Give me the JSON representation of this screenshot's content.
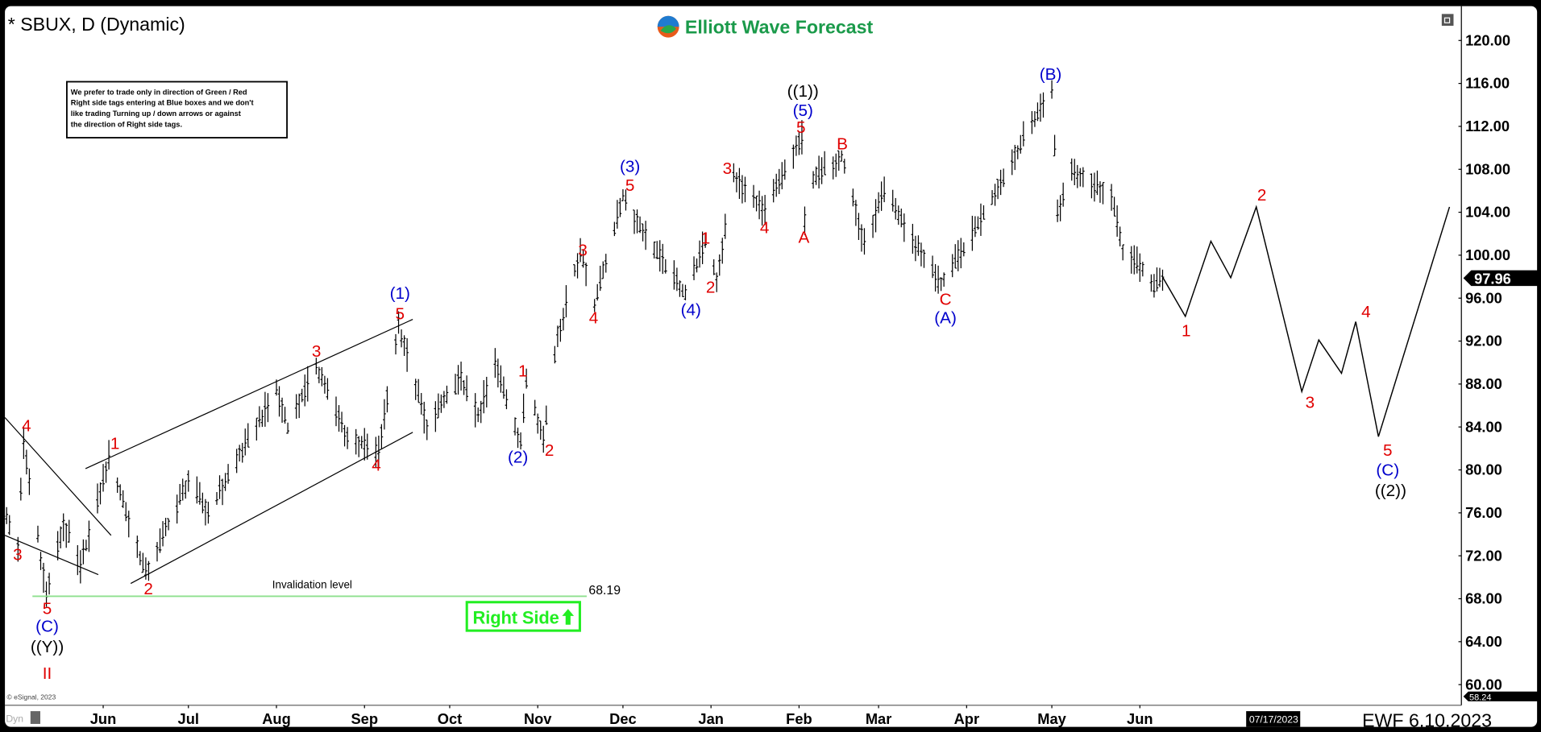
{
  "header": {
    "title": "* SBUX, D (Dynamic)",
    "logo_text": "Elliott Wave Forecast"
  },
  "info_box": {
    "lines": [
      "We prefer to trade only in direction of Green / Red",
      "Right side tags entering at Blue boxes and we don't",
      "like trading Turning up / down arrows or against",
      "the direction of Right side tags."
    ]
  },
  "colors": {
    "red_label": "#e00000",
    "blue_label": "#0000cc",
    "black_label": "#000000",
    "invalidation_line": "#8ee08e",
    "right_side_green": "#22ee22",
    "logo_green": "#1a9a4a",
    "bars": "#000000"
  },
  "chart_data": {
    "type": "ohlc",
    "symbol": "SBUX",
    "interval": "D",
    "ylim": [
      58,
      122
    ],
    "grid": false,
    "y_ticks": [
      "120.00",
      "116.00",
      "112.00",
      "108.00",
      "104.00",
      "100.00",
      "96.00",
      "92.00",
      "88.00",
      "84.00",
      "80.00",
      "76.00",
      "72.00",
      "68.00",
      "64.00",
      "60.00"
    ],
    "x_ticks": [
      "Jun",
      "Jul",
      "Aug",
      "Sep",
      "Oct",
      "Nov",
      "Dec",
      "Jan",
      "Feb",
      "Mar",
      "Apr",
      "May",
      "Jun"
    ],
    "last_price": "97.96",
    "axis_low_tag": "58.24",
    "cursor_date": "07/17/2023",
    "price_swings": [
      [
        "2022-04-27",
        76
      ],
      [
        "2022-05-02",
        73
      ],
      [
        "2022-05-04",
        82.6
      ],
      [
        "2022-05-12",
        68.4
      ],
      [
        "2022-05-18",
        75
      ],
      [
        "2022-05-24",
        71
      ],
      [
        "2022-06-03",
        81.2
      ],
      [
        "2022-06-16",
        70.2
      ],
      [
        "2022-07-01",
        79
      ],
      [
        "2022-07-08",
        76
      ],
      [
        "2022-08-01",
        87.5
      ],
      [
        "2022-08-05",
        84
      ],
      [
        "2022-08-15",
        89.7
      ],
      [
        "2022-08-26",
        83
      ],
      [
        "2022-09-06",
        81.7
      ],
      [
        "2022-09-13",
        93.6
      ],
      [
        "2022-09-23",
        84
      ],
      [
        "2022-10-05",
        88.5
      ],
      [
        "2022-10-11",
        85
      ],
      [
        "2022-10-17",
        90
      ],
      [
        "2022-10-26",
        82.6
      ],
      [
        "2022-10-28",
        88.5
      ],
      [
        "2022-11-03",
        83
      ],
      [
        "2022-11-08",
        92.6
      ],
      [
        "2022-11-16",
        100.5
      ],
      [
        "2022-11-21",
        95.4
      ],
      [
        "2022-12-01",
        105.5
      ],
      [
        "2022-12-09",
        101.8
      ],
      [
        "2022-12-23",
        96.3
      ],
      [
        "2022-12-30",
        101.3
      ],
      [
        "2023-01-03",
        97.7
      ],
      [
        "2023-01-09",
        107.3
      ],
      [
        "2023-01-20",
        104
      ],
      [
        "2023-02-02",
        111
      ],
      [
        "2023-02-03",
        103.2
      ],
      [
        "2023-02-06",
        107.3
      ],
      [
        "2023-02-16",
        109.3
      ],
      [
        "2023-02-24",
        100.9
      ],
      [
        "2023-03-03",
        105.9
      ],
      [
        "2023-03-23",
        97.2
      ],
      [
        "2023-04-03",
        102
      ],
      [
        "2023-05-01",
        115.7
      ],
      [
        "2023-05-03",
        104
      ],
      [
        "2023-05-08",
        108.2
      ],
      [
        "2023-05-22",
        105.5
      ],
      [
        "2023-05-26",
        100.4
      ],
      [
        "2023-06-01",
        99
      ],
      [
        "2023-06-06",
        97
      ],
      [
        "2023-06-09",
        97.96
      ]
    ],
    "projection": [
      [
        "2023-06-09",
        97.96
      ],
      [
        "2023-06-17",
        94.3
      ],
      [
        "2023-06-26",
        101.3
      ],
      [
        "2023-07-03",
        97.9
      ],
      [
        "2023-07-12",
        104.5
      ],
      [
        "2023-07-28",
        87.3
      ],
      [
        "2023-08-03",
        92.1
      ],
      [
        "2023-08-11",
        89
      ],
      [
        "2023-08-16",
        93.8
      ],
      [
        "2023-08-24",
        83.1
      ],
      [
        "2023-09-18",
        104.5
      ]
    ],
    "invalidation": {
      "label": "Invalidation level",
      "value": "68.19"
    },
    "right_side_tag": "Right Side",
    "wave_labels": [
      {
        "text": "4",
        "color": "red"
      },
      {
        "text": "3",
        "color": "red"
      },
      {
        "text": "5",
        "color": "red"
      },
      {
        "text": "(C)",
        "color": "blue"
      },
      {
        "text": "((Y))",
        "color": "black"
      },
      {
        "text": "II",
        "color": "red"
      },
      {
        "text": "1",
        "color": "red"
      },
      {
        "text": "2",
        "color": "red"
      },
      {
        "text": "3",
        "color": "red"
      },
      {
        "text": "4",
        "color": "red"
      },
      {
        "text": "5",
        "color": "red"
      },
      {
        "text": "(1)",
        "color": "blue"
      },
      {
        "text": "(2)",
        "color": "blue"
      },
      {
        "text": "1",
        "color": "red"
      },
      {
        "text": "2",
        "color": "red"
      },
      {
        "text": "3",
        "color": "red"
      },
      {
        "text": "4",
        "color": "red"
      },
      {
        "text": "5",
        "color": "red"
      },
      {
        "text": "(3)",
        "color": "blue"
      },
      {
        "text": "(4)",
        "color": "blue"
      },
      {
        "text": "1",
        "color": "red"
      },
      {
        "text": "2",
        "color": "red"
      },
      {
        "text": "3",
        "color": "red"
      },
      {
        "text": "4",
        "color": "red"
      },
      {
        "text": "5",
        "color": "red"
      },
      {
        "text": "(5)",
        "color": "blue"
      },
      {
        "text": "((1))",
        "color": "black"
      },
      {
        "text": "A",
        "color": "red"
      },
      {
        "text": "B",
        "color": "red"
      },
      {
        "text": "C",
        "color": "red"
      },
      {
        "text": "(A)",
        "color": "blue"
      },
      {
        "text": "(B)",
        "color": "blue"
      },
      {
        "text": "1",
        "color": "red"
      },
      {
        "text": "2",
        "color": "red"
      },
      {
        "text": "3",
        "color": "red"
      },
      {
        "text": "4",
        "color": "red"
      },
      {
        "text": "5",
        "color": "red"
      },
      {
        "text": "(C)",
        "color": "blue"
      },
      {
        "text": "((2))",
        "color": "black"
      }
    ]
  },
  "footer": {
    "stamp": "EWF 6.10.2023",
    "copyright": "© eSignal, 2023",
    "dyn": "Dyn"
  }
}
